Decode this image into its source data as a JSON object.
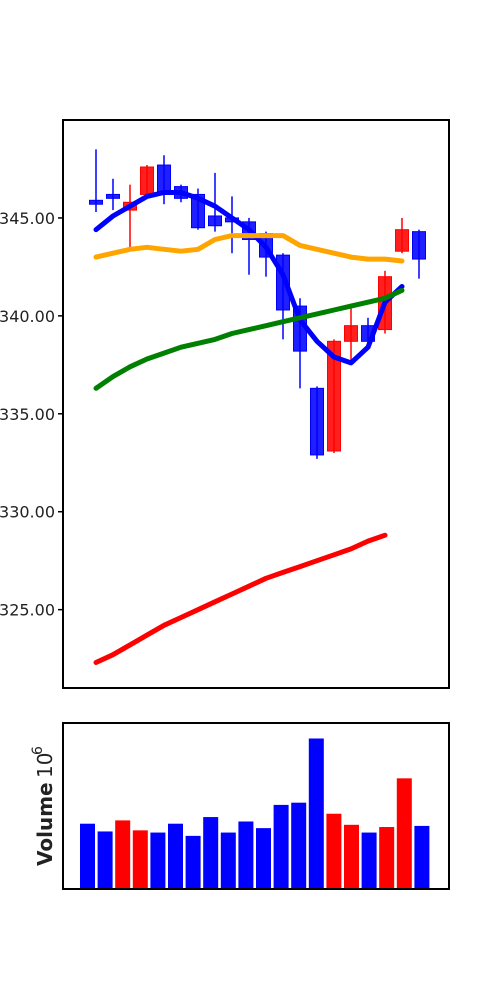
{
  "chart_data": [
    {
      "type": "candlestick",
      "ylim": [
        321,
        350
      ],
      "ytick_values": [
        325,
        330,
        335,
        340,
        345
      ],
      "ytick_labels": [
        "325.00",
        "330.00",
        "335.00",
        "340.00",
        "345.00"
      ],
      "up_color": "#0000ff",
      "down_color": "#ff0000",
      "candles": [
        {
          "open": 345.9,
          "close": 345.7,
          "high": 348.5,
          "low": 345.3,
          "dir": "up"
        },
        {
          "open": 346.0,
          "close": 346.2,
          "high": 347.0,
          "low": 345.4,
          "dir": "up"
        },
        {
          "open": 345.4,
          "close": 345.8,
          "high": 346.7,
          "low": 343.4,
          "dir": "down"
        },
        {
          "open": 346.2,
          "close": 347.6,
          "high": 347.7,
          "low": 346.1,
          "dir": "down"
        },
        {
          "open": 347.7,
          "close": 346.3,
          "high": 348.2,
          "low": 345.7,
          "dir": "up"
        },
        {
          "open": 346.6,
          "close": 346.0,
          "high": 346.7,
          "low": 345.8,
          "dir": "up"
        },
        {
          "open": 346.2,
          "close": 344.5,
          "high": 346.5,
          "low": 344.4,
          "dir": "up"
        },
        {
          "open": 345.1,
          "close": 344.6,
          "high": 347.3,
          "low": 344.3,
          "dir": "up"
        },
        {
          "open": 345.0,
          "close": 344.8,
          "high": 346.1,
          "low": 343.2,
          "dir": "up"
        },
        {
          "open": 344.8,
          "close": 343.9,
          "high": 345.0,
          "low": 342.1,
          "dir": "up"
        },
        {
          "open": 344.2,
          "close": 343.0,
          "high": 344.3,
          "low": 342.0,
          "dir": "up"
        },
        {
          "open": 343.1,
          "close": 340.3,
          "high": 343.2,
          "low": 338.8,
          "dir": "up"
        },
        {
          "open": 340.5,
          "close": 338.2,
          "high": 340.9,
          "low": 336.3,
          "dir": "up"
        },
        {
          "open": 336.3,
          "close": 332.9,
          "high": 336.4,
          "low": 332.7,
          "dir": "up"
        },
        {
          "open": 333.1,
          "close": 338.7,
          "high": 338.8,
          "low": 333.0,
          "dir": "down"
        },
        {
          "open": 338.7,
          "close": 339.5,
          "high": 340.4,
          "low": 337.5,
          "dir": "down"
        },
        {
          "open": 339.5,
          "close": 338.7,
          "high": 339.9,
          "low": 338.6,
          "dir": "up"
        },
        {
          "open": 339.3,
          "close": 342.0,
          "high": 342.3,
          "low": 339.1,
          "dir": "down"
        },
        {
          "open": 343.3,
          "close": 344.4,
          "high": 345.0,
          "low": 343.2,
          "dir": "down"
        },
        {
          "open": 344.3,
          "close": 342.9,
          "high": 344.4,
          "low": 341.9,
          "dir": "up"
        }
      ],
      "series": [
        {
          "color": "#0000ff",
          "values": [
            344.4,
            345.1,
            345.6,
            346.1,
            346.3,
            346.3,
            346.0,
            345.6,
            345.0,
            344.4,
            343.5,
            342.1,
            339.8,
            338.7,
            337.9,
            337.6,
            338.4,
            340.7,
            341.5
          ]
        },
        {
          "color": "#ffa500",
          "values": [
            343.0,
            343.2,
            343.4,
            343.5,
            343.4,
            343.3,
            343.4,
            343.9,
            344.1,
            344.1,
            344.1,
            344.1,
            343.6,
            343.4,
            343.2,
            343.0,
            342.9,
            342.9,
            342.8
          ]
        },
        {
          "color": "#008000",
          "values": [
            336.3,
            336.9,
            337.4,
            337.8,
            338.1,
            338.4,
            338.6,
            338.8,
            339.1,
            339.3,
            339.5,
            339.7,
            339.9,
            340.1,
            340.3,
            340.5,
            340.7,
            340.9,
            341.3
          ]
        },
        {
          "color": "#ff0000",
          "values": [
            322.3,
            322.7,
            323.2,
            323.7,
            324.2,
            324.6,
            325.0,
            325.4,
            325.8,
            326.2,
            326.6,
            326.9,
            327.2,
            327.5,
            327.8,
            328.1,
            328.5,
            328.8
          ]
        }
      ]
    },
    {
      "type": "bar",
      "ylabel": "Volume",
      "ylabel_exponent": "6",
      "ylim": [
        0,
        150
      ],
      "up_color": "#0000ff",
      "down_color": "#ff0000",
      "values": [
        59,
        52,
        62,
        53,
        51,
        59,
        48,
        65,
        51,
        61,
        55,
        76,
        78,
        136,
        68,
        58,
        51,
        56,
        100,
        57
      ],
      "dirs": [
        "up",
        "up",
        "down",
        "down",
        "up",
        "up",
        "up",
        "up",
        "up",
        "up",
        "up",
        "up",
        "up",
        "up",
        "down",
        "down",
        "up",
        "down",
        "down",
        "up"
      ]
    }
  ]
}
